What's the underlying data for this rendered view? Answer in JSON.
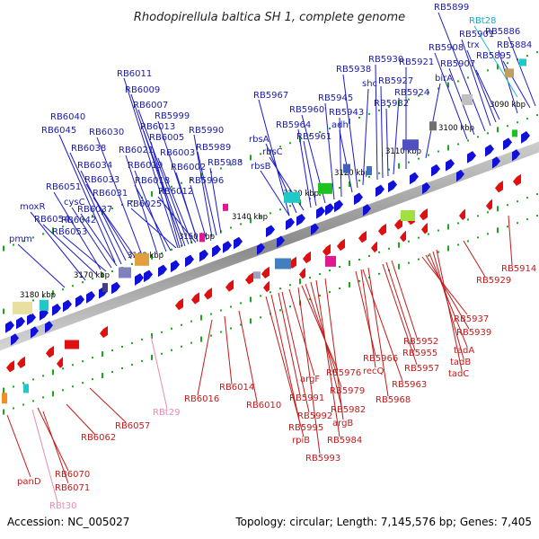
{
  "header": {
    "title": "Rhodopirellula baltica SH 1, complete genome"
  },
  "footer": {
    "accession": "Accession: NC_005027",
    "topology": "Topology: circular; Length: 7,145,576 bp; Genes: 7,405"
  },
  "kbp_ticks": [
    "3180 kbp",
    "3170 kbp",
    "3160 kbp",
    "3150 kbp",
    "3140 kbp",
    "3130 kbp",
    "3120 kbp",
    "3110 kbp",
    "3100 kbp",
    "3090 kbp"
  ],
  "top_labels": [
    "RB5899",
    "RBt28",
    "RB5901",
    "RB5886",
    "RB5908",
    "trx",
    "RB5884",
    "RB5907",
    "RB5895",
    "RB5930",
    "RB5921",
    "RB5938",
    "RB5927",
    "shc",
    "birA",
    "RB5924",
    "RB5967",
    "RB5945",
    "RB5932",
    "RB5960",
    "RB5943",
    "adh",
    "RB5964",
    "RB5961",
    "rbsA",
    "rbsC",
    "rbsB",
    "RB6011",
    "RB6009",
    "RB6007",
    "RB6040",
    "RB6013",
    "RB5999",
    "RB6045",
    "RB6030",
    "RB6005",
    "RB5990",
    "RB6003",
    "RB6038",
    "RB6021",
    "RB5989",
    "RB6034",
    "RB6019",
    "RB6002",
    "RB5988",
    "RB6033",
    "RB6018",
    "RB5996",
    "RB6051",
    "RB6031",
    "RB6012",
    "cysC",
    "RB6025",
    "moxR",
    "RB6037",
    "RB6054",
    "RB6042",
    "RB6053",
    "pmm"
  ],
  "bottom_labels": [
    "RB5914",
    "RB5929",
    "RB5937",
    "RB5939",
    "tadA",
    "tadB",
    "tadC",
    "RB5952",
    "RB5955",
    "RB5957",
    "RB5966",
    "recQ",
    "RB5963",
    "RB5968",
    "argF",
    "RB5976",
    "RB5979",
    "RB5982",
    "RB5991",
    "RB5992",
    "RB5995",
    "rpiB",
    "RB5984",
    "argB",
    "RB5993",
    "RB6010",
    "RB6014",
    "RB6016",
    "RBt29",
    "RB6057",
    "RB6062",
    "RB6070",
    "panD",
    "RB6071",
    "RBt30"
  ]
}
